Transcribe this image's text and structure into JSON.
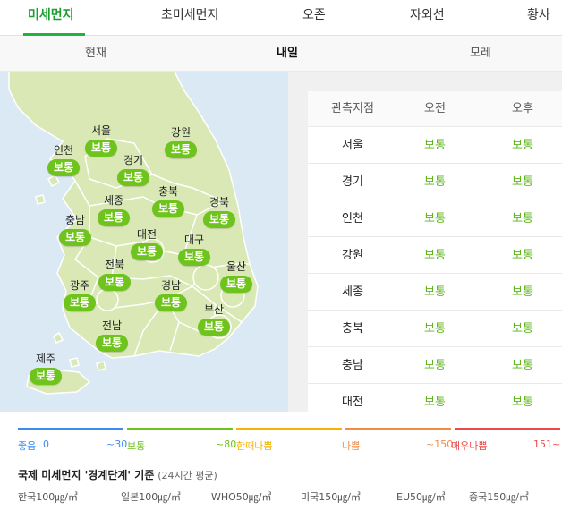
{
  "tabs": [
    {
      "label": "미세먼지"
    },
    {
      "label": "초미세먼지"
    },
    {
      "label": "오존"
    },
    {
      "label": "자외선"
    },
    {
      "label": "황사"
    }
  ],
  "subtabs": [
    {
      "label": "현재"
    },
    {
      "label": "내일"
    },
    {
      "label": "모레"
    }
  ],
  "map": {
    "regions": [
      {
        "name": "서울",
        "status": "보통"
      },
      {
        "name": "강원",
        "status": "보통"
      },
      {
        "name": "인천",
        "status": "보통"
      },
      {
        "name": "경기",
        "status": "보통"
      },
      {
        "name": "충북",
        "status": "보통"
      },
      {
        "name": "세종",
        "status": "보통"
      },
      {
        "name": "경북",
        "status": "보통"
      },
      {
        "name": "충남",
        "status": "보통"
      },
      {
        "name": "대전",
        "status": "보통"
      },
      {
        "name": "대구",
        "status": "보통"
      },
      {
        "name": "전북",
        "status": "보통"
      },
      {
        "name": "울산",
        "status": "보통"
      },
      {
        "name": "광주",
        "status": "보통"
      },
      {
        "name": "경남",
        "status": "보통"
      },
      {
        "name": "부산",
        "status": "보통"
      },
      {
        "name": "전남",
        "status": "보통"
      },
      {
        "name": "제주",
        "status": "보통"
      }
    ]
  },
  "table": {
    "headers": [
      "관측지점",
      "오전",
      "오후"
    ],
    "rows": [
      {
        "site": "서울",
        "am": "보통",
        "pm": "보통"
      },
      {
        "site": "경기",
        "am": "보통",
        "pm": "보통"
      },
      {
        "site": "인천",
        "am": "보통",
        "pm": "보통"
      },
      {
        "site": "강원",
        "am": "보통",
        "pm": "보통"
      },
      {
        "site": "세종",
        "am": "보통",
        "pm": "보통"
      },
      {
        "site": "충북",
        "am": "보통",
        "pm": "보통"
      },
      {
        "site": "충남",
        "am": "보통",
        "pm": "보통"
      },
      {
        "site": "대전",
        "am": "보통",
        "pm": "보통"
      }
    ]
  },
  "legend": {
    "items": [
      {
        "label": "좋음",
        "low": "0",
        "high": "~30",
        "color": "#3c8cf0"
      },
      {
        "label": "보통",
        "high": "~80",
        "color": "#6ec31c"
      },
      {
        "label": "한때나쁨",
        "color": "#f5b400"
      },
      {
        "label": "나쁨",
        "high": "~150",
        "color": "#f08c46"
      },
      {
        "label": "매우나쁨",
        "high": "151~",
        "color": "#ec4b4b"
      }
    ]
  },
  "standards": {
    "title": "국제 미세먼지 '경계단계' 기준",
    "subtitle": "(24시간 평균)",
    "items": [
      "한국100㎍/㎥",
      "일본100㎍/㎥",
      "WHO50㎍/㎥",
      "미국150㎍/㎥",
      "EU50㎍/㎥",
      "중국150㎍/㎥"
    ]
  },
  "colors": {
    "accent": "#1fb33a",
    "status_normal": "#6ec31c",
    "map_sea": "#dbe9f4",
    "map_land": "#d9e8b4"
  }
}
